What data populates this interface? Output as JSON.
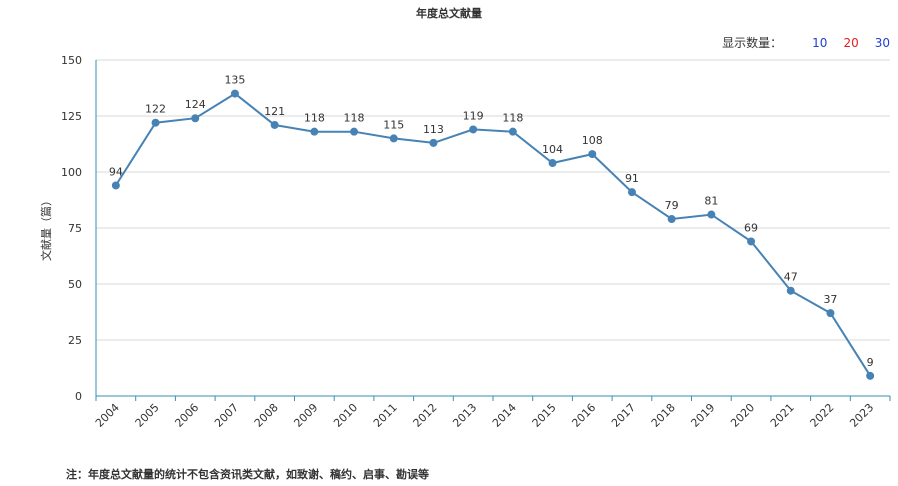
{
  "title": "年度总文献量",
  "display_count": {
    "label": "显示数量：",
    "options": [
      {
        "label": "10",
        "color": "#1f3fd1"
      },
      {
        "label": "20",
        "color": "#e02020"
      },
      {
        "label": "30",
        "color": "#1f3fd1"
      }
    ]
  },
  "footnote": "注：年度总文献量的统计不包含资讯类文献，如致谢、稿约、启事、勘误等",
  "chart_data": {
    "type": "line",
    "ylabel": "文献量（篇）",
    "xlabel": "",
    "ylim": [
      0,
      150
    ],
    "yticks": [
      "0",
      "25",
      "50",
      "75",
      "100",
      "125",
      "150"
    ],
    "categories": [
      "2004",
      "2005",
      "2006",
      "2007",
      "2008",
      "2009",
      "2010",
      "2011",
      "2012",
      "2013",
      "2014",
      "2015",
      "2016",
      "2017",
      "2018",
      "2019",
      "2020",
      "2021",
      "2022",
      "2023"
    ],
    "series": [
      {
        "values": [
          94,
          122,
          124,
          135,
          121,
          118,
          118,
          115,
          113,
          119,
          118,
          104,
          108,
          91,
          79,
          81,
          69,
          47,
          37,
          9
        ],
        "labels": [
          "94",
          "122",
          "124",
          "135",
          "121",
          "118",
          "118",
          "115",
          "113",
          "119",
          "118",
          "104",
          "108",
          "91",
          "79",
          "81",
          "69",
          "47",
          "37",
          "9"
        ],
        "color": "#4682b4"
      }
    ],
    "grid": true
  }
}
